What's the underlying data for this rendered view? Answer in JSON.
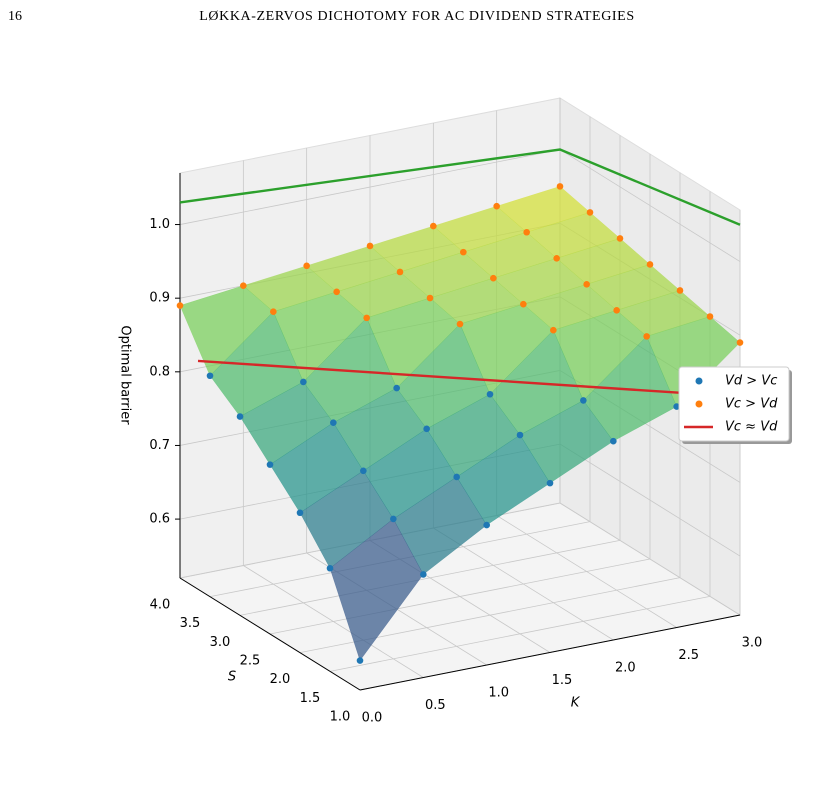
{
  "header": {
    "page_number": "16",
    "running_title": "LØKKA-ZERVOS DICHOTOMY FOR AC DIVIDEND STRATEGIES"
  },
  "chart_data": {
    "type": "surface3d",
    "xlabel": "K",
    "ylabel": "S",
    "zlabel": "Optimal barrier",
    "xlim": [
      0,
      3
    ],
    "ylim": [
      1,
      4
    ],
    "zlim": [
      0.52,
      1.07
    ],
    "xticks": [
      {
        "value": 0,
        "label": "0.0"
      },
      0.5,
      {
        "value": 1,
        "label": "1.0"
      },
      1.5,
      {
        "value": 2,
        "label": "2.0"
      },
      2.5,
      {
        "value": 3,
        "label": "3.0"
      }
    ],
    "yticks": [
      {
        "value": 1,
        "label": "1.0"
      },
      1.5,
      {
        "value": 2,
        "label": "2.0"
      },
      2.5,
      {
        "value": 3,
        "label": "3.0"
      },
      3.5,
      {
        "value": 4,
        "label": "4.0"
      }
    ],
    "zticks": [
      0.6,
      0.7,
      0.8,
      0.9,
      {
        "value": 1,
        "label": "1.0"
      }
    ],
    "grid": true,
    "legend": "right",
    "series": [
      {
        "name": "Vd > Vc",
        "color": "#1f77b4",
        "points": [
          [
            0,
            1,
            0.56
          ],
          [
            0.5,
            1,
            0.66
          ],
          [
            0,
            1.5,
            0.66
          ],
          [
            1,
            1,
            0.71
          ],
          [
            0.5,
            1.5,
            0.71
          ],
          [
            0,
            2,
            0.71
          ],
          [
            1.5,
            1,
            0.75
          ],
          [
            1,
            1.5,
            0.75
          ],
          [
            0.5,
            2,
            0.75
          ],
          [
            0,
            2.5,
            0.75
          ],
          [
            2,
            1,
            0.79
          ],
          [
            1.5,
            1.5,
            0.79
          ],
          [
            1,
            2,
            0.79
          ],
          [
            0.5,
            2.5,
            0.79
          ],
          [
            0,
            3,
            0.79
          ],
          [
            2.5,
            1,
            0.82
          ],
          [
            2,
            1.5,
            0.82
          ],
          [
            1.5,
            2,
            0.82
          ],
          [
            1,
            2.5,
            0.82
          ],
          [
            0.5,
            3,
            0.82
          ],
          [
            0,
            3.5,
            0.82
          ]
        ]
      },
      {
        "name": "Vc > Vd",
        "color": "#ff7f0e",
        "points": [
          [
            3,
            1,
            0.89
          ],
          [
            2.5,
            1.5,
            0.89
          ],
          [
            2,
            2,
            0.89
          ],
          [
            1.5,
            2.5,
            0.89
          ],
          [
            1,
            3,
            0.89
          ],
          [
            0.5,
            3.5,
            0.89
          ],
          [
            0,
            4,
            0.89
          ],
          [
            3,
            1.5,
            0.9
          ],
          [
            2.5,
            2,
            0.9
          ],
          [
            2,
            2.5,
            0.9
          ],
          [
            1.5,
            3,
            0.9
          ],
          [
            1,
            3.5,
            0.9
          ],
          [
            0.5,
            4,
            0.9
          ],
          [
            3,
            2,
            0.91
          ],
          [
            2.5,
            2.5,
            0.91
          ],
          [
            2,
            3,
            0.91
          ],
          [
            1.5,
            3.5,
            0.91
          ],
          [
            1,
            4,
            0.91
          ],
          [
            3,
            2.5,
            0.92
          ],
          [
            2.5,
            3,
            0.92
          ],
          [
            2,
            3.5,
            0.92
          ],
          [
            1.5,
            4,
            0.92
          ],
          [
            3,
            3,
            0.93
          ],
          [
            2.5,
            3.5,
            0.93
          ],
          [
            2,
            4,
            0.93
          ],
          [
            3,
            3.5,
            0.94
          ],
          [
            2.5,
            4,
            0.94
          ],
          [
            3,
            4,
            0.95
          ]
        ]
      }
    ],
    "lines": [
      {
        "name": "Vc ≈ Vd",
        "color": "#d62728",
        "points": [
          [
            0,
            3.7,
            0.83
          ],
          [
            2.7,
            1,
            0.83
          ]
        ]
      },
      {
        "color": "#2ca02c",
        "points": [
          [
            0,
            4,
            1.03
          ],
          [
            3,
            4,
            1.0
          ],
          [
            3,
            1,
            1.05
          ]
        ]
      }
    ]
  }
}
